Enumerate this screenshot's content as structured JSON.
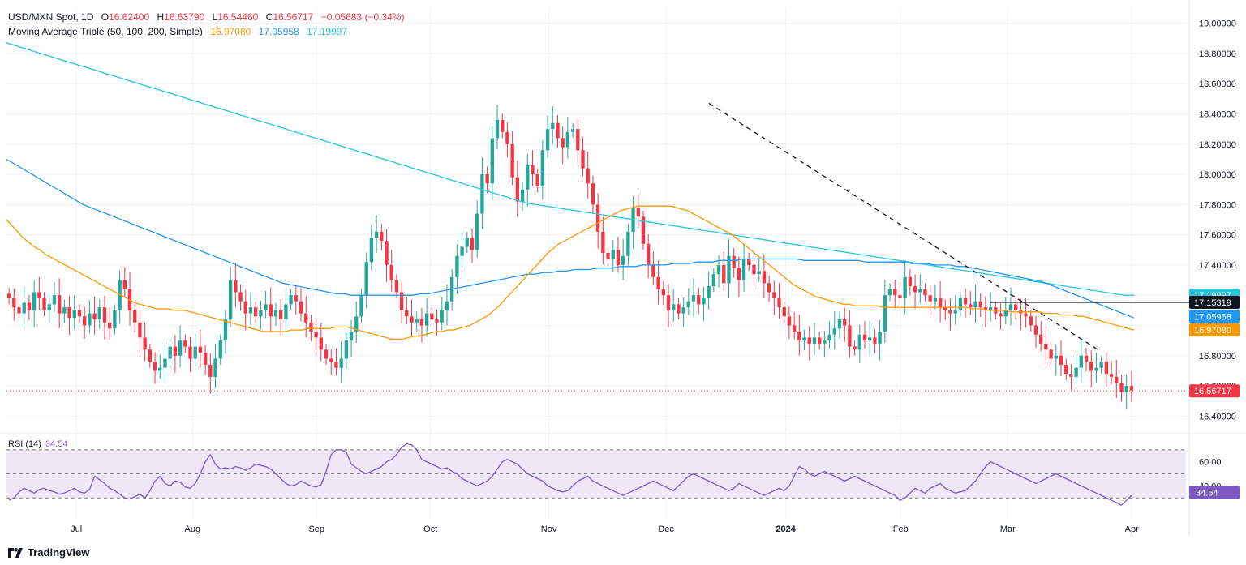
{
  "header": {
    "symbol": "USD/MXN Spot, 1D",
    "open_label": "O",
    "open": "16.62400",
    "high_label": "H",
    "high": "16.63790",
    "low_label": "L",
    "low": "16.54460",
    "close_label": "C",
    "close": "16.56717",
    "change": "−0.05683 (−0.34%)",
    "ma_label": "Moving Average Triple (50, 100, 200, Simple)",
    "ma50": "16.97080",
    "ma100": "17.05958",
    "ma200": "17.19997",
    "rsi_label": "RSI (14)",
    "rsi_value": "34.54"
  },
  "footer": {
    "brand": "TradingView"
  },
  "colors": {
    "up": "#26a69a",
    "down": "#f23645",
    "ma50": "#ff9800",
    "ma100": "#2196f3",
    "ma200": "#26c6da",
    "rsi": "#7e57c2",
    "rsi_band": "#ede7f6",
    "hline": "#131722"
  },
  "chart_data": {
    "type": "candlestick",
    "price_ylim": [
      16.3,
      19.1
    ],
    "price_ticks": [
      "19.00000",
      "18.80000",
      "18.60000",
      "18.40000",
      "18.20000",
      "18.00000",
      "17.80000",
      "17.60000",
      "17.40000",
      "17.20000",
      "17.00000",
      "16.80000",
      "16.60000",
      "16.40000"
    ],
    "x_labels": [
      "Jul",
      "Aug",
      "Sep",
      "Oct",
      "Nov",
      "Dec",
      "2024",
      "Feb",
      "Mar",
      "Apr"
    ],
    "price_badges": [
      {
        "label": "17.19997",
        "value": 17.19997,
        "color": "#26c6da"
      },
      {
        "label": "17.15319",
        "value": 17.15319,
        "color": "#131722"
      },
      {
        "label": "17.05958",
        "value": 17.05958,
        "color": "#2196f3"
      },
      {
        "label": "16.97080",
        "value": 16.9708,
        "color": "#ff9800"
      },
      {
        "label": "16.56717",
        "value": 16.56717,
        "color": "#f23645"
      }
    ],
    "horizontal_level": 17.15319,
    "last_close": 16.56717,
    "trendline": {
      "from": [
        0.623,
        18.47
      ],
      "to": [
        0.968,
        16.84
      ]
    },
    "closes": [
      17.18,
      17.12,
      17.08,
      17.15,
      17.1,
      17.22,
      17.18,
      17.1,
      17.14,
      17.2,
      17.08,
      17.12,
      17.05,
      17.1,
      17.06,
      17.0,
      17.08,
      17.04,
      17.12,
      17.02,
      16.98,
      17.1,
      17.3,
      17.24,
      17.1,
      17.02,
      16.92,
      16.84,
      16.76,
      16.7,
      16.72,
      16.78,
      16.86,
      16.8,
      16.9,
      16.86,
      16.78,
      16.86,
      16.82,
      16.74,
      16.66,
      16.78,
      16.9,
      17.04,
      17.3,
      17.22,
      17.16,
      17.08,
      17.12,
      17.06,
      17.1,
      17.14,
      17.06,
      17.1,
      17.04,
      17.14,
      17.2,
      17.16,
      17.08,
      17.02,
      16.96,
      16.92,
      16.84,
      16.78,
      16.76,
      16.72,
      16.78,
      16.9,
      16.96,
      17.06,
      17.2,
      17.42,
      17.58,
      17.62,
      17.56,
      17.4,
      17.3,
      17.22,
      17.1,
      17.06,
      17.02,
      17.04,
      17.0,
      17.08,
      17.04,
      17.02,
      17.1,
      17.16,
      17.32,
      17.46,
      17.52,
      17.58,
      17.5,
      17.74,
      18.0,
      17.94,
      18.24,
      18.36,
      18.28,
      18.2,
      17.98,
      17.82,
      17.9,
      18.06,
      18.0,
      17.92,
      18.16,
      18.3,
      18.34,
      18.24,
      18.18,
      18.28,
      18.3,
      18.16,
      18.04,
      17.94,
      17.8,
      17.62,
      17.48,
      17.44,
      17.5,
      17.4,
      17.46,
      17.62,
      17.78,
      17.72,
      17.54,
      17.4,
      17.32,
      17.24,
      17.2,
      17.1,
      17.14,
      17.08,
      17.12,
      17.16,
      17.2,
      17.14,
      17.18,
      17.26,
      17.34,
      17.4,
      17.28,
      17.46,
      17.38,
      17.3,
      17.44,
      17.4,
      17.34,
      17.36,
      17.28,
      17.22,
      17.18,
      17.12,
      17.06,
      17.0,
      16.96,
      16.9,
      16.92,
      16.88,
      16.92,
      16.88,
      16.9,
      16.94,
      16.98,
      17.04,
      17.0,
      16.86,
      16.84,
      16.94,
      16.9,
      16.92,
      16.88,
      16.96,
      17.2,
      17.24,
      17.2,
      17.18,
      17.32,
      17.26,
      17.22,
      17.24,
      17.2,
      17.16,
      17.18,
      17.12,
      17.1,
      17.08,
      17.1,
      17.18,
      17.14,
      17.12,
      17.16,
      17.12,
      17.1,
      17.12,
      17.08,
      17.06,
      17.1,
      17.14,
      17.1,
      17.08,
      17.06,
      17.0,
      16.94,
      16.88,
      16.84,
      16.78,
      16.8,
      16.74,
      16.68,
      16.66,
      16.72,
      16.8,
      16.76,
      16.7,
      16.72,
      16.76,
      16.68,
      16.66,
      16.62,
      16.56,
      16.6,
      16.57
    ],
    "ma50": [
      17.7,
      17.66,
      17.62,
      17.58,
      17.55,
      17.52,
      17.5,
      17.47,
      17.45,
      17.43,
      17.41,
      17.39,
      17.37,
      17.35,
      17.33,
      17.31,
      17.29,
      17.27,
      17.25,
      17.23,
      17.21,
      17.19,
      17.17,
      17.15,
      17.14,
      17.13,
      17.12,
      17.11,
      17.11,
      17.11,
      17.1,
      17.1,
      17.1,
      17.09,
      17.08,
      17.07,
      17.06,
      17.05,
      17.04,
      17.03,
      17.02,
      17.01,
      17.0,
      16.99,
      16.98,
      16.97,
      16.96,
      16.96,
      16.96,
      16.96,
      16.96,
      16.97,
      16.97,
      16.97,
      16.98,
      16.98,
      16.98,
      16.98,
      16.98,
      16.99,
      16.99,
      16.99,
      16.98,
      16.97,
      16.96,
      16.95,
      16.94,
      16.93,
      16.92,
      16.91,
      16.91,
      16.91,
      16.92,
      16.93,
      16.93,
      16.94,
      16.95,
      16.96,
      16.96,
      16.97,
      16.97,
      16.98,
      16.99,
      17.0,
      17.02,
      17.04,
      17.06,
      17.09,
      17.12,
      17.16,
      17.2,
      17.24,
      17.28,
      17.32,
      17.36,
      17.4,
      17.44,
      17.48,
      17.51,
      17.54,
      17.56,
      17.58,
      17.6,
      17.62,
      17.64,
      17.66,
      17.68,
      17.7,
      17.72,
      17.74,
      17.76,
      17.77,
      17.78,
      17.79,
      17.79,
      17.79,
      17.79,
      17.79,
      17.79,
      17.79,
      17.78,
      17.77,
      17.76,
      17.74,
      17.72,
      17.7,
      17.68,
      17.66,
      17.64,
      17.62,
      17.6,
      17.57,
      17.54,
      17.51,
      17.48,
      17.45,
      17.42,
      17.39,
      17.36,
      17.33,
      17.3,
      17.27,
      17.25,
      17.23,
      17.21,
      17.19,
      17.18,
      17.17,
      17.16,
      17.15,
      17.14,
      17.14,
      17.13,
      17.13,
      17.13,
      17.13,
      17.13,
      17.12,
      17.12,
      17.12,
      17.12,
      17.12,
      17.12,
      17.12,
      17.12,
      17.12,
      17.12,
      17.12,
      17.12,
      17.12,
      17.12,
      17.12,
      17.12,
      17.11,
      17.11,
      17.11,
      17.1,
      17.1,
      17.1,
      17.1,
      17.09,
      17.09,
      17.09,
      17.09,
      17.09,
      17.09,
      17.08,
      17.08,
      17.08,
      17.07,
      17.07,
      17.07,
      17.06,
      17.06,
      17.05,
      17.04,
      17.03,
      17.02,
      17.01,
      17.0,
      16.99,
      16.98,
      16.97
    ],
    "ma100": [
      18.1,
      18.07,
      18.04,
      18.01,
      17.98,
      17.95,
      17.92,
      17.89,
      17.86,
      17.83,
      17.8,
      17.78,
      17.76,
      17.74,
      17.72,
      17.7,
      17.68,
      17.66,
      17.64,
      17.62,
      17.6,
      17.58,
      17.56,
      17.54,
      17.52,
      17.5,
      17.48,
      17.46,
      17.44,
      17.42,
      17.4,
      17.38,
      17.36,
      17.34,
      17.32,
      17.3,
      17.28,
      17.27,
      17.26,
      17.25,
      17.24,
      17.23,
      17.22,
      17.21,
      17.21,
      17.2,
      17.2,
      17.2,
      17.2,
      17.2,
      17.2,
      17.2,
      17.2,
      17.2,
      17.21,
      17.21,
      17.22,
      17.23,
      17.24,
      17.25,
      17.26,
      17.27,
      17.28,
      17.29,
      17.3,
      17.31,
      17.32,
      17.33,
      17.34,
      17.34,
      17.35,
      17.35,
      17.36,
      17.36,
      17.37,
      17.37,
      17.37,
      17.38,
      17.38,
      17.38,
      17.39,
      17.39,
      17.39,
      17.4,
      17.4,
      17.4,
      17.4,
      17.41,
      17.41,
      17.41,
      17.42,
      17.42,
      17.42,
      17.43,
      17.43,
      17.43,
      17.44,
      17.44,
      17.44,
      17.44,
      17.44,
      17.44,
      17.44,
      17.44,
      17.43,
      17.43,
      17.43,
      17.43,
      17.43,
      17.43,
      17.43,
      17.43,
      17.42,
      17.42,
      17.42,
      17.42,
      17.42,
      17.42,
      17.41,
      17.41,
      17.41,
      17.4,
      17.4,
      17.4,
      17.39,
      17.39,
      17.38,
      17.37,
      17.36,
      17.35,
      17.34,
      17.33,
      17.32,
      17.31,
      17.3,
      17.29,
      17.27,
      17.25,
      17.23,
      17.21,
      17.19,
      17.17,
      17.15,
      17.13,
      17.11,
      17.09,
      17.07,
      17.05
    ],
    "ma200": [
      18.87,
      18.85,
      18.83,
      18.81,
      18.79,
      18.77,
      18.75,
      18.73,
      18.71,
      18.69,
      18.67,
      18.65,
      18.63,
      18.61,
      18.59,
      18.57,
      18.55,
      18.53,
      18.51,
      18.49,
      18.47,
      18.45,
      18.43,
      18.41,
      18.39,
      18.37,
      18.35,
      18.33,
      18.31,
      18.29,
      18.27,
      18.25,
      18.23,
      18.21,
      18.19,
      18.17,
      18.15,
      18.13,
      18.11,
      18.09,
      18.07,
      18.05,
      18.03,
      18.01,
      17.99,
      17.97,
      17.95,
      17.93,
      17.91,
      17.89,
      17.87,
      17.85,
      17.83,
      17.81,
      17.8,
      17.79,
      17.78,
      17.77,
      17.76,
      17.75,
      17.74,
      17.73,
      17.72,
      17.71,
      17.7,
      17.69,
      17.68,
      17.67,
      17.66,
      17.65,
      17.64,
      17.63,
      17.62,
      17.61,
      17.6,
      17.59,
      17.58,
      17.57,
      17.56,
      17.55,
      17.54,
      17.53,
      17.52,
      17.51,
      17.5,
      17.49,
      17.48,
      17.47,
      17.46,
      17.45,
      17.44,
      17.43,
      17.42,
      17.41,
      17.4,
      17.39,
      17.38,
      17.37,
      17.36,
      17.35,
      17.34,
      17.33,
      17.32,
      17.31,
      17.3,
      17.29,
      17.28,
      17.27,
      17.26,
      17.25,
      17.24,
      17.23,
      17.22,
      17.21,
      17.2,
      17.2
    ],
    "rsi": {
      "ylim": [
        18,
        80
      ],
      "ticks": [
        "60.00",
        "40.00"
      ],
      "band": [
        30,
        70
      ],
      "mid": 50,
      "last": 34.54,
      "values": [
        28,
        30,
        35,
        38,
        36,
        34,
        37,
        38,
        36,
        35,
        33,
        34,
        36,
        38,
        35,
        34,
        37,
        48,
        45,
        42,
        38,
        36,
        33,
        30,
        29,
        31,
        33,
        30,
        36,
        44,
        48,
        42,
        40,
        44,
        43,
        39,
        38,
        42,
        50,
        60,
        66,
        58,
        54,
        55,
        54,
        56,
        55,
        53,
        55,
        58,
        57,
        56,
        54,
        50,
        46,
        42,
        40,
        41,
        44,
        42,
        40,
        39,
        41,
        52,
        66,
        70,
        70,
        68,
        58,
        55,
        52,
        50,
        52,
        54,
        56,
        60,
        62,
        66,
        72,
        75,
        74,
        70,
        62,
        60,
        58,
        56,
        54,
        55,
        52,
        50,
        46,
        44,
        42,
        40,
        42,
        44,
        48,
        54,
        60,
        62,
        60,
        58,
        54,
        50,
        48,
        46,
        44,
        40,
        38,
        36,
        35,
        36,
        40,
        44,
        46,
        48,
        44,
        42,
        40,
        38,
        36,
        34,
        32,
        34,
        36,
        38,
        40,
        42,
        44,
        42,
        40,
        38,
        36,
        40,
        44,
        48,
        50,
        48,
        46,
        44,
        42,
        40,
        38,
        36,
        38,
        42,
        40,
        38,
        36,
        34,
        32,
        34,
        36,
        38,
        36,
        40,
        48,
        56,
        54,
        50,
        48,
        50,
        52,
        50,
        48,
        46,
        44,
        46,
        48,
        46,
        44,
        42,
        40,
        38,
        36,
        34,
        32,
        28,
        30,
        34,
        38,
        36,
        34,
        38,
        40,
        42,
        38,
        36,
        34,
        35
      ],
      "values2": [
        36,
        40,
        44,
        50,
        56,
        60,
        58,
        56,
        54,
        52,
        50,
        48,
        46,
        44,
        42,
        44,
        46,
        48,
        50,
        48,
        46,
        44,
        42,
        40,
        38,
        36,
        34,
        32,
        30,
        28,
        26,
        24,
        28,
        32,
        36,
        40,
        38,
        36,
        34,
        32,
        34,
        36,
        40,
        36,
        34,
        35
      ]
    }
  }
}
